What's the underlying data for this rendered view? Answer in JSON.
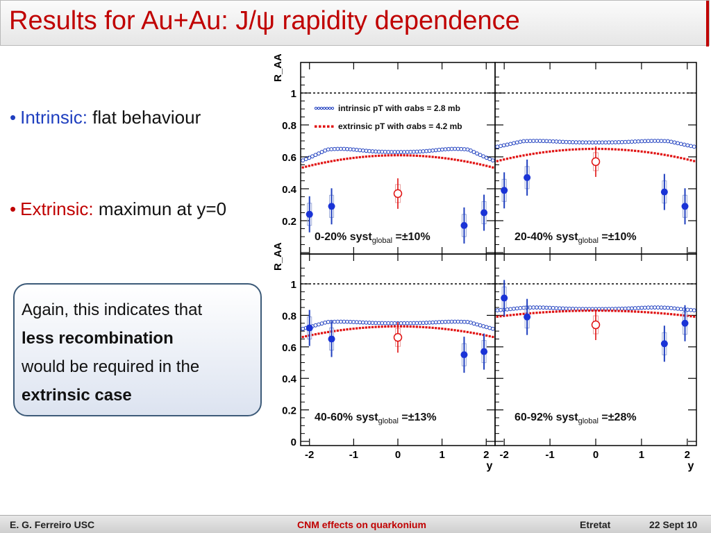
{
  "slide": {
    "title": "Results for Au+Au: J/ψ rapidity dependence",
    "bullets": [
      {
        "label": "Intrinsic:",
        "text": "flat behaviour",
        "color": "#1f3fbf"
      },
      {
        "label": "Extrinsic:",
        "text": "maximun at y=0",
        "color": "#c00000"
      }
    ],
    "callout": {
      "line1": "Again, this indicates that",
      "bold1": "less recombination",
      "line3": "would be required in the",
      "bold2": "extrinsic case"
    }
  },
  "footer": {
    "author": "E. G. Ferreiro USC",
    "topic": "CNM effects on quarkonium",
    "place": "Etretat",
    "date": "22 Sept 10"
  },
  "chart_data": {
    "type": "scatter",
    "ylabel": "R_AA",
    "xlabel": "y",
    "xlim": [
      -2.2,
      2.2
    ],
    "ylim": [
      0,
      1.15
    ],
    "x_ticks": [
      "-2",
      "-1",
      "0",
      "1",
      "2"
    ],
    "y_ticks": [
      "0",
      "0.2",
      "0.4",
      "0.6",
      "0.8",
      "1"
    ],
    "legend": [
      {
        "name": "intrinsic pT with σabs = 2.8 mb",
        "color": "#1f3fbf",
        "style": "open-circles"
      },
      {
        "name": "extrinsic pT with σabs = 4.2 mb",
        "color": "#e01010",
        "style": "filled-dots"
      }
    ],
    "panels": [
      {
        "label": "0-20%",
        "syst": "±10%",
        "intrinsic": {
          "center": 0.63,
          "edge": 0.59,
          "peak_y": -1.3,
          "peak": 0.65
        },
        "extrinsic": {
          "center": 0.61,
          "edge": 0.53
        },
        "points_forward": [
          {
            "x": -2.0,
            "y": 0.24
          },
          {
            "x": -1.5,
            "y": 0.29
          },
          {
            "x": 1.5,
            "y": 0.17
          },
          {
            "x": 1.95,
            "y": 0.25
          }
        ],
        "point_mid": {
          "x": 0.0,
          "y": 0.37
        }
      },
      {
        "label": "20-40%",
        "syst": "±10%",
        "intrinsic": {
          "center": 0.69,
          "edge": 0.67,
          "peak_y": -1.3,
          "peak": 0.7
        },
        "extrinsic": {
          "center": 0.65,
          "edge": 0.57
        },
        "points_forward": [
          {
            "x": -2.0,
            "y": 0.39
          },
          {
            "x": -1.5,
            "y": 0.47
          },
          {
            "x": 1.5,
            "y": 0.38
          },
          {
            "x": 1.95,
            "y": 0.29
          }
        ],
        "point_mid": {
          "x": 0.0,
          "y": 0.57
        }
      },
      {
        "label": "40-60%",
        "syst": "±13%",
        "intrinsic": {
          "center": 0.75,
          "edge": 0.72,
          "peak_y": -1.3,
          "peak": 0.76
        },
        "extrinsic": {
          "center": 0.73,
          "edge": 0.66
        },
        "points_forward": [
          {
            "x": -2.0,
            "y": 0.72
          },
          {
            "x": -1.5,
            "y": 0.65
          },
          {
            "x": 1.5,
            "y": 0.55
          },
          {
            "x": 1.95,
            "y": 0.57
          }
        ],
        "point_mid": {
          "x": 0.0,
          "y": 0.66
        }
      },
      {
        "label": "60-92%",
        "syst": "±28%",
        "intrinsic": {
          "center": 0.84,
          "edge": 0.84,
          "peak_y": -1.3,
          "peak": 0.85
        },
        "extrinsic": {
          "center": 0.83,
          "edge": 0.79
        },
        "points_forward": [
          {
            "x": -2.0,
            "y": 0.91
          },
          {
            "x": -1.5,
            "y": 0.79
          },
          {
            "x": 1.5,
            "y": 0.62
          },
          {
            "x": 1.95,
            "y": 0.75
          }
        ],
        "point_mid": {
          "x": 0.0,
          "y": 0.74
        }
      }
    ]
  }
}
